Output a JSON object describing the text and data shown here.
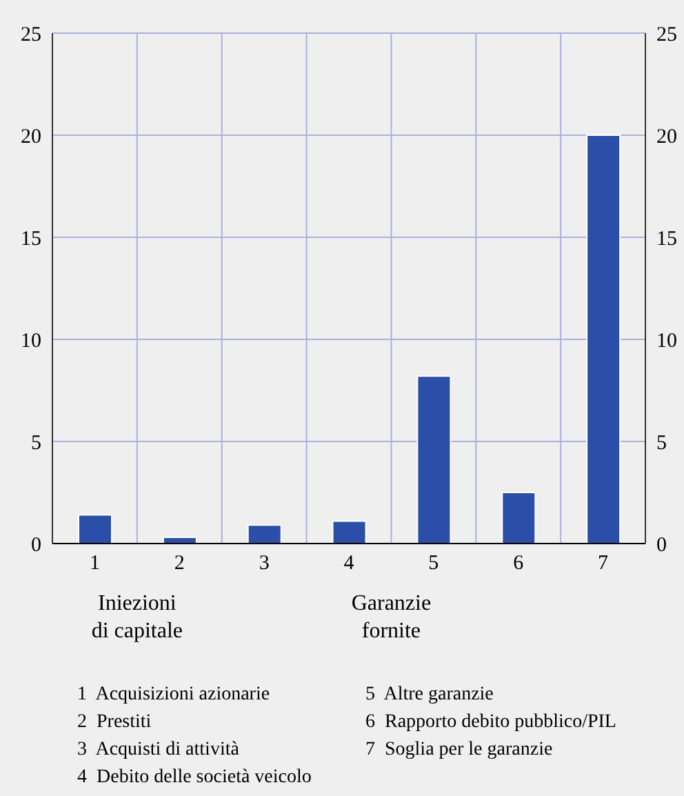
{
  "chart_data": {
    "type": "bar",
    "categories": [
      "1",
      "2",
      "3",
      "4",
      "5",
      "6",
      "7"
    ],
    "values": [
      1.4,
      0.3,
      0.9,
      1.1,
      8.2,
      2.5,
      20
    ],
    "color": "#2b4ea8",
    "ylim": [
      0,
      25
    ],
    "yticks": [
      0,
      5,
      10,
      15,
      20,
      25
    ],
    "y2lim": [
      0,
      25
    ],
    "y2ticks": [
      0,
      5,
      10,
      15,
      20,
      25
    ],
    "grid": true,
    "annotations": [
      "Iniezioni\ndi capitale",
      "Garanzie\nfornite",
      "1  Acquisizioni azionarie",
      "2  Prestiti",
      "3  Acquisti di attività",
      "4  Debito delle società veicolo",
      "5  Altre garanzie",
      "6  Rapporto debito pubblico/PIL",
      "7  Soglia per le garanzie"
    ]
  }
}
